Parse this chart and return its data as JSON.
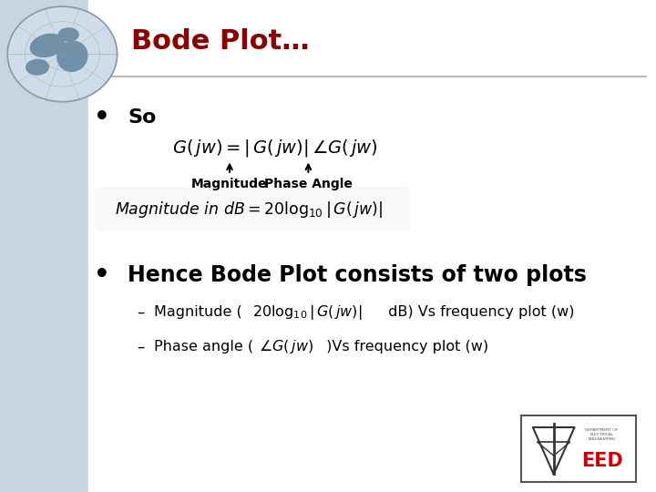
{
  "title": "Bode Plot…",
  "title_color": "#8B0000",
  "slide_bg": "#ffffff",
  "left_bg": "#c8d4e0",
  "bullet1": "So",
  "magnitude_label": "Magnitude",
  "phase_label": "Phase Angle",
  "bullet2": "Hence Bode Plot consists of two plots"
}
